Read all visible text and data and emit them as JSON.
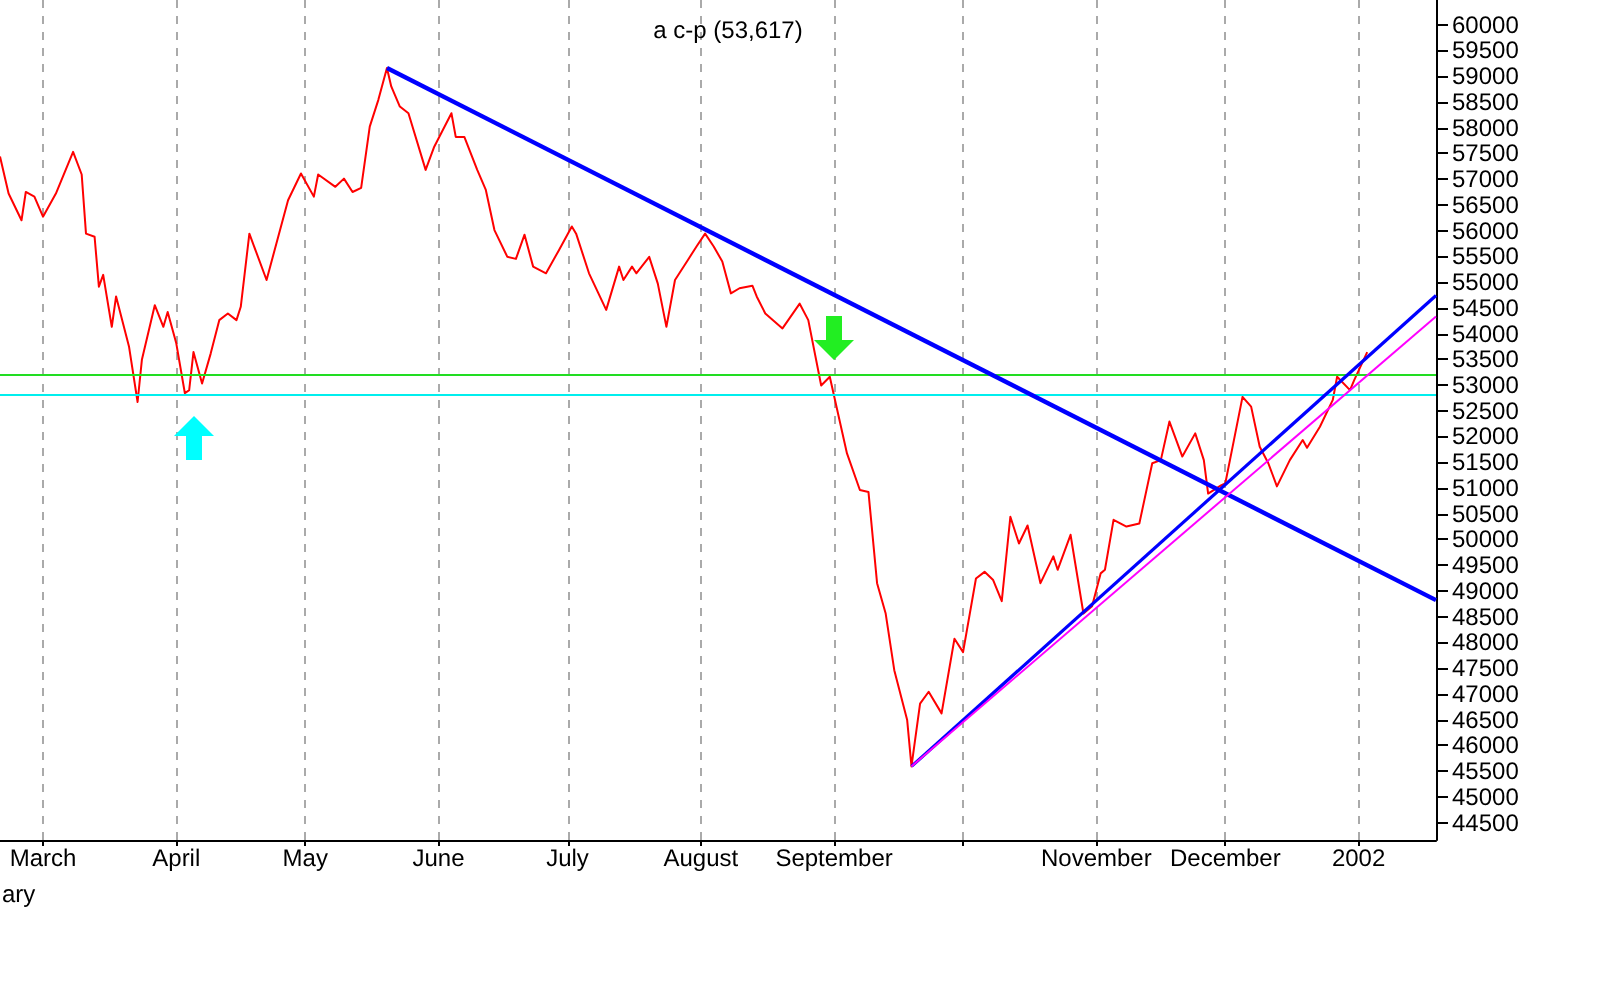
{
  "chart_data": {
    "type": "line",
    "title": "a c-p (53,617)",
    "annotations": [
      "ary"
    ],
    "xlim": [
      "2001-02-19",
      "2002-01-19"
    ],
    "xticks": [
      {
        "value": "2001-03-01",
        "label": "March"
      },
      {
        "value": "2001-04-01",
        "label": "April"
      },
      {
        "value": "2001-05-01",
        "label": "May"
      },
      {
        "value": "2001-06-01",
        "label": "June"
      },
      {
        "value": "2001-07-01",
        "label": "July"
      },
      {
        "value": "2001-08-01",
        "label": "August"
      },
      {
        "value": "2001-09-01",
        "label": "September"
      },
      {
        "value": "2001-10-01",
        "label": null
      },
      {
        "value": "2001-11-01",
        "label": "November"
      },
      {
        "value": "2001-12-01",
        "label": "December"
      },
      {
        "value": "2002-01-01",
        "label": "2002"
      }
    ],
    "ylim": [
      44160,
      60480
    ],
    "yticks": [
      44500,
      45000,
      45500,
      46000,
      46500,
      47000,
      47500,
      48000,
      48500,
      49000,
      49500,
      50000,
      50500,
      51000,
      51500,
      52000,
      52500,
      53000,
      53500,
      54000,
      54500,
      55000,
      55500,
      56000,
      56500,
      57000,
      57500,
      58000,
      58500,
      59000,
      59500,
      60000
    ],
    "grid": "x",
    "ref_lines": [
      {
        "axis": "y",
        "value": 53190,
        "color": "#22dd22"
      },
      {
        "axis": "y",
        "value": 52810,
        "color": "#00eeee"
      }
    ],
    "series": [
      {
        "color": "#ff0000",
        "x": [
          "2001-02-19",
          "2001-02-21",
          "2001-02-24",
          "2001-02-25",
          "2001-02-27",
          "2001-03-01",
          "2001-03-04",
          "2001-03-08",
          "2001-03-10",
          "2001-03-11",
          "2001-03-13",
          "2001-03-14",
          "2001-03-15",
          "2001-03-17",
          "2001-03-18",
          "2001-03-21",
          "2001-03-23",
          "2001-03-24",
          "2001-03-27",
          "2001-03-29",
          "2001-03-30",
          "2001-04-01",
          "2001-04-03",
          "2001-04-04",
          "2001-04-05",
          "2001-04-07",
          "2001-04-09",
          "2001-04-11",
          "2001-04-13",
          "2001-04-15",
          "2001-04-16",
          "2001-04-18",
          "2001-04-22",
          "2001-04-27",
          "2001-04-30",
          "2001-05-03",
          "2001-05-04",
          "2001-05-08",
          "2001-05-10",
          "2001-05-12",
          "2001-05-14",
          "2001-05-16",
          "2001-05-18",
          "2001-05-20",
          "2001-05-21",
          "2001-05-23",
          "2001-05-25",
          "2001-05-29",
          "2001-05-31",
          "2001-06-04",
          "2001-06-05",
          "2001-06-07",
          "2001-06-10",
          "2001-06-12",
          "2001-06-14",
          "2001-06-17",
          "2001-06-19",
          "2001-06-21",
          "2001-06-23",
          "2001-06-26",
          "2001-06-29",
          "2001-07-02",
          "2001-07-03",
          "2001-07-06",
          "2001-07-10",
          "2001-07-13",
          "2001-07-14",
          "2001-07-16",
          "2001-07-17",
          "2001-07-20",
          "2001-07-22",
          "2001-07-24",
          "2001-07-26",
          "2001-07-29",
          "2001-07-31",
          "2001-08-02",
          "2001-08-04",
          "2001-08-06",
          "2001-08-08",
          "2001-08-10",
          "2001-08-13",
          "2001-08-14",
          "2001-08-16",
          "2001-08-20",
          "2001-08-24",
          "2001-08-26",
          "2001-08-29",
          "2001-08-31",
          "2001-09-04",
          "2001-09-07",
          "2001-09-09",
          "2001-09-11",
          "2001-09-13",
          "2001-09-15",
          "2001-09-18",
          "2001-09-19",
          "2001-09-21",
          "2001-09-23",
          "2001-09-26",
          "2001-09-29",
          "2001-10-01",
          "2001-10-04",
          "2001-10-06",
          "2001-10-08",
          "2001-10-10",
          "2001-10-12",
          "2001-10-14",
          "2001-10-16",
          "2001-10-19",
          "2001-10-22",
          "2001-10-23",
          "2001-10-26",
          "2001-10-29",
          "2001-10-31",
          "2001-11-02",
          "2001-11-03",
          "2001-11-05",
          "2001-11-08",
          "2001-11-11",
          "2001-11-14",
          "2001-11-16",
          "2001-11-18",
          "2001-11-21",
          "2001-11-24",
          "2001-11-26",
          "2001-11-27",
          "2001-11-30",
          "2001-12-01",
          "2001-12-03",
          "2001-12-05",
          "2001-12-07",
          "2001-12-09",
          "2001-12-11",
          "2001-12-13",
          "2001-12-16",
          "2001-12-19",
          "2001-12-20",
          "2001-12-23",
          "2001-12-26",
          "2001-12-27",
          "2001-12-30",
          "2001-12-31",
          "2002-01-03"
        ],
        "values": [
          57440,
          56720,
          56200,
          56750,
          56660,
          56270,
          56720,
          57530,
          57090,
          55940,
          55880,
          54910,
          55140,
          54130,
          54720,
          53750,
          52670,
          53490,
          54550,
          54130,
          54420,
          53810,
          52840,
          52900,
          53640,
          53030,
          53610,
          54260,
          54390,
          54260,
          54520,
          55940,
          55040,
          56590,
          57110,
          56660,
          57090,
          56850,
          57010,
          56750,
          56830,
          58020,
          58540,
          59160,
          58800,
          58410,
          58280,
          57180,
          57630,
          58280,
          57820,
          57820,
          57180,
          56790,
          56010,
          55490,
          55450,
          55920,
          55300,
          55170,
          55620,
          56080,
          55940,
          55170,
          54460,
          55300,
          55040,
          55300,
          55170,
          55490,
          54970,
          54130,
          55040,
          55430,
          55690,
          55940,
          55690,
          55400,
          54780,
          54880,
          54930,
          54720,
          54390,
          54100,
          54580,
          54260,
          52990,
          53160,
          51670,
          50960,
          50920,
          49150,
          48560,
          47460,
          46490,
          45590,
          46810,
          47040,
          46620,
          48070,
          47810,
          49240,
          49370,
          49210,
          48800,
          50440,
          49920,
          50270,
          49150,
          49670,
          49410,
          50090,
          48560,
          48700,
          49340,
          49410,
          50380,
          50250,
          50310,
          51480,
          51540,
          52290,
          51610,
          52060,
          51540,
          50890,
          51050,
          51090,
          51930,
          52770,
          52580,
          51800,
          51480,
          51030,
          51540,
          51930,
          51780,
          52190,
          52710,
          53160,
          52900,
          53100,
          53640
        ]
      },
      {
        "color": "#0000ff",
        "x": [
          "2001-05-20",
          "2002-01-19"
        ],
        "values": [
          59160,
          48820
        ]
      },
      {
        "color": "#0000ff",
        "x": [
          "2001-09-19",
          "2002-01-19"
        ],
        "values": [
          45590,
          54740
        ]
      },
      {
        "color": "#ff00ff",
        "x": [
          "2001-09-19",
          "2002-01-19"
        ],
        "values": [
          45590,
          54330
        ]
      }
    ]
  }
}
